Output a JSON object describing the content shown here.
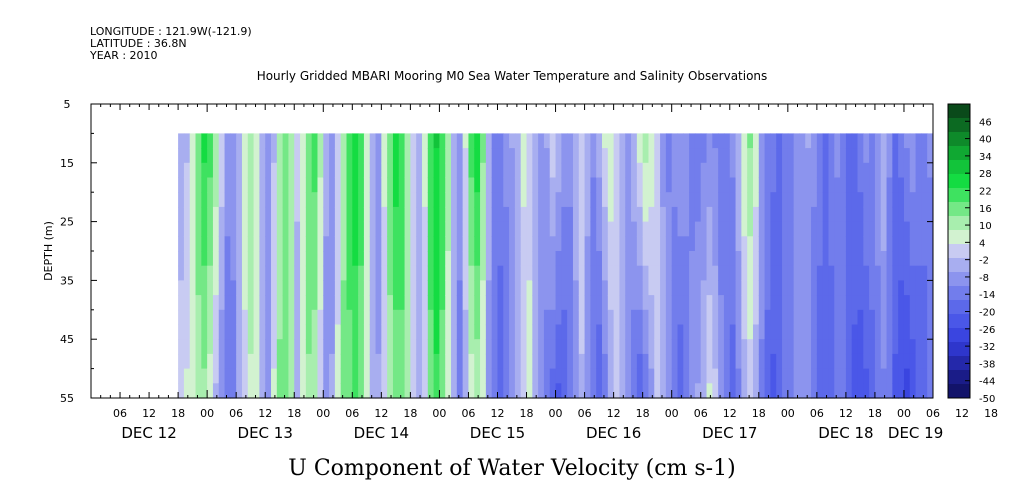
{
  "header": {
    "longitude": "LONGITUDE : 121.9W(-121.9)",
    "latitude": "LATITUDE : 36.8N",
    "year": "YEAR : 2010"
  },
  "chart_data": {
    "type": "heatmap",
    "title": "Hourly Gridded MBARI Mooring M0 Sea Water Temperature and Salinity Observations",
    "variable_title": "U Component of Water Velocity (cm s-1)",
    "ylabel": "DEPTH (m)",
    "xlabel": "",
    "y_axis": {
      "reversed": true,
      "ylim": [
        5,
        55
      ],
      "ticks": [
        5,
        15,
        25,
        35,
        45,
        55
      ]
    },
    "x_axis": {
      "range_days": [
        0,
        7.25
      ],
      "hour_ticks": [
        "06",
        "12",
        "18",
        "00",
        "06",
        "12",
        "18",
        "00",
        "06",
        "12",
        "18",
        "00",
        "06",
        "12",
        "18",
        "00",
        "06",
        "12",
        "18",
        "00",
        "06",
        "12",
        "18",
        "00",
        "06",
        "12",
        "18",
        "00",
        "06",
        "12",
        "18",
        "00"
      ],
      "day_labels": [
        "DEC 12",
        "DEC 13",
        "DEC 14",
        "DEC 15",
        "DEC 16",
        "DEC 17",
        "DEC 18",
        "DEC 19"
      ]
    },
    "data_extent": {
      "depth": [
        10,
        55
      ],
      "time_start_hour": 18
    },
    "colorbar": {
      "levels": [
        "46",
        "40",
        "34",
        "28",
        "22",
        "16",
        "10",
        "4",
        "-2",
        "-8",
        "-14",
        "-20",
        "-26",
        "-32",
        "-38",
        "-44",
        "-50"
      ],
      "range": [
        -50,
        52
      ],
      "colors": [
        "#0a4a1a",
        "#0c6a22",
        "#0e8a2a",
        "#10a832",
        "#12c43a",
        "#14dc42",
        "#3ee260",
        "#74e886",
        "#a8eeae",
        "#d2f2d0",
        "#c8cbf2",
        "#a8aef0",
        "#8c94ee",
        "#727dec",
        "#5c69ea",
        "#4a57e8",
        "#3a45e0",
        "#2e36cc",
        "#2428aa",
        "#1a1c88",
        "#12136a"
      ]
    },
    "columns": [
      {
        "t": 0.0,
        "top": -6,
        "bot": 2
      },
      {
        "t": 0.05,
        "top": -2,
        "bot": 4
      },
      {
        "t": 0.1,
        "top": 8,
        "bot": 6
      },
      {
        "t": 0.15,
        "top": 18,
        "bot": 10
      },
      {
        "t": 0.2,
        "top": 24,
        "bot": 12
      },
      {
        "t": 0.25,
        "top": 20,
        "bot": 6
      },
      {
        "t": 0.3,
        "top": 12,
        "bot": -2
      },
      {
        "t": 0.35,
        "top": 2,
        "bot": -10
      },
      {
        "t": 0.4,
        "top": -8,
        "bot": -16
      },
      {
        "t": 0.45,
        "top": -10,
        "bot": -12
      },
      {
        "t": 0.5,
        "top": -4,
        "bot": -6
      },
      {
        "t": 0.55,
        "top": 6,
        "bot": 2
      },
      {
        "t": 0.6,
        "top": 10,
        "bot": 8
      },
      {
        "t": 0.65,
        "top": 4,
        "bot": 6
      },
      {
        "t": 0.7,
        "top": -4,
        "bot": -4
      },
      {
        "t": 0.75,
        "top": -10,
        "bot": -8
      },
      {
        "t": 0.8,
        "top": -2,
        "bot": 4
      },
      {
        "t": 0.85,
        "top": 10,
        "bot": 14
      },
      {
        "t": 0.9,
        "top": 18,
        "bot": 18
      },
      {
        "t": 0.95,
        "top": 12,
        "bot": 10
      },
      {
        "t": 1.0,
        "top": 0,
        "bot": -4
      },
      {
        "t": 1.05,
        "top": 8,
        "bot": 6
      },
      {
        "t": 1.1,
        "top": 18,
        "bot": 12
      },
      {
        "t": 1.15,
        "top": 20,
        "bot": 10
      },
      {
        "t": 1.2,
        "top": 10,
        "bot": 0
      },
      {
        "t": 1.25,
        "top": -4,
        "bot": -10
      },
      {
        "t": 1.3,
        "top": -8,
        "bot": -6
      },
      {
        "t": 1.35,
        "top": 2,
        "bot": 4
      },
      {
        "t": 1.4,
        "top": 12,
        "bot": 14
      },
      {
        "t": 1.45,
        "top": 22,
        "bot": 16
      },
      {
        "t": 1.5,
        "top": 26,
        "bot": 20
      },
      {
        "t": 1.55,
        "top": 20,
        "bot": 16
      },
      {
        "t": 1.6,
        "top": 8,
        "bot": 8
      },
      {
        "t": 1.65,
        "top": -4,
        "bot": -2
      },
      {
        "t": 1.7,
        "top": -8,
        "bot": -6
      },
      {
        "t": 1.75,
        "top": 4,
        "bot": 2
      },
      {
        "t": 1.8,
        "top": 18,
        "bot": 10
      },
      {
        "t": 1.85,
        "top": 26,
        "bot": 14
      },
      {
        "t": 1.9,
        "top": 22,
        "bot": 16
      },
      {
        "t": 1.95,
        "top": 12,
        "bot": 10
      },
      {
        "t": 2.0,
        "top": 0,
        "bot": 2
      },
      {
        "t": 2.05,
        "top": -6,
        "bot": -4
      },
      {
        "t": 2.1,
        "top": 4,
        "bot": 2
      },
      {
        "t": 2.15,
        "top": 22,
        "bot": 16
      },
      {
        "t": 2.2,
        "top": 28,
        "bot": 22
      },
      {
        "t": 2.25,
        "top": 22,
        "bot": 16
      },
      {
        "t": 2.3,
        "top": 10,
        "bot": 6
      },
      {
        "t": 2.35,
        "top": -4,
        "bot": -6
      },
      {
        "t": 2.4,
        "top": -10,
        "bot": -12
      },
      {
        "t": 2.45,
        "top": 4,
        "bot": -4
      },
      {
        "t": 2.5,
        "top": 20,
        "bot": 6
      },
      {
        "t": 2.55,
        "top": 26,
        "bot": 10
      },
      {
        "t": 2.6,
        "top": 14,
        "bot": 4
      },
      {
        "t": 2.65,
        "top": -4,
        "bot": -8
      },
      {
        "t": 2.7,
        "top": -12,
        "bot": -14
      },
      {
        "t": 2.75,
        "top": -14,
        "bot": -18
      },
      {
        "t": 2.8,
        "top": -10,
        "bot": -14
      },
      {
        "t": 2.85,
        "top": -6,
        "bot": -10
      },
      {
        "t": 2.9,
        "top": -2,
        "bot": -4
      },
      {
        "t": 2.95,
        "top": 4,
        "bot": 2
      },
      {
        "t": 3.0,
        "top": 0,
        "bot": 6
      },
      {
        "t": 3.05,
        "top": -6,
        "bot": -2
      },
      {
        "t": 3.1,
        "top": -10,
        "bot": -10
      },
      {
        "t": 3.15,
        "top": -6,
        "bot": -14
      },
      {
        "t": 3.2,
        "top": 2,
        "bot": -18
      },
      {
        "t": 3.25,
        "top": -2,
        "bot": -22
      },
      {
        "t": 3.3,
        "top": -8,
        "bot": -20
      },
      {
        "t": 3.35,
        "top": -10,
        "bot": -14
      },
      {
        "t": 3.4,
        "top": -4,
        "bot": -8
      },
      {
        "t": 3.45,
        "top": 2,
        "bot": -2
      },
      {
        "t": 3.5,
        "top": -4,
        "bot": -10
      },
      {
        "t": 3.55,
        "top": -10,
        "bot": -16
      },
      {
        "t": 3.6,
        "top": -4,
        "bot": -20
      },
      {
        "t": 3.65,
        "top": 4,
        "bot": -14
      },
      {
        "t": 3.7,
        "top": 8,
        "bot": -6
      },
      {
        "t": 3.75,
        "top": 2,
        "bot": 0
      },
      {
        "t": 3.8,
        "top": -6,
        "bot": -4
      },
      {
        "t": 3.85,
        "top": -10,
        "bot": -10
      },
      {
        "t": 3.9,
        "top": -2,
        "bot": -16
      },
      {
        "t": 3.95,
        "top": 6,
        "bot": -20
      },
      {
        "t": 4.0,
        "top": 12,
        "bot": -16
      },
      {
        "t": 4.05,
        "top": 8,
        "bot": -8
      },
      {
        "t": 4.1,
        "top": 0,
        "bot": 2
      },
      {
        "t": 4.15,
        "top": -8,
        "bot": -2
      },
      {
        "t": 4.2,
        "top": -12,
        "bot": -8
      },
      {
        "t": 4.25,
        "top": -10,
        "bot": -14
      },
      {
        "t": 4.3,
        "top": -6,
        "bot": -20
      },
      {
        "t": 4.35,
        "top": -8,
        "bot": -16
      },
      {
        "t": 4.4,
        "top": -12,
        "bot": -10
      },
      {
        "t": 4.45,
        "top": -14,
        "bot": -6
      },
      {
        "t": 4.5,
        "top": -12,
        "bot": -2
      },
      {
        "t": 4.55,
        "top": -10,
        "bot": 4
      },
      {
        "t": 4.6,
        "top": -12,
        "bot": 0
      },
      {
        "t": 4.65,
        "top": -16,
        "bot": -8
      },
      {
        "t": 4.7,
        "top": -14,
        "bot": -14
      },
      {
        "t": 4.75,
        "top": -10,
        "bot": -18
      },
      {
        "t": 4.8,
        "top": -2,
        "bot": -12
      },
      {
        "t": 4.85,
        "top": 8,
        "bot": -4
      },
      {
        "t": 4.9,
        "top": 14,
        "bot": 0
      },
      {
        "t": 4.95,
        "top": 6,
        "bot": -4
      },
      {
        "t": 5.0,
        "top": -8,
        "bot": -12
      },
      {
        "t": 5.05,
        "top": -12,
        "bot": -18
      },
      {
        "t": 5.1,
        "top": -14,
        "bot": -22
      },
      {
        "t": 5.15,
        "top": -16,
        "bot": -20
      },
      {
        "t": 5.2,
        "top": -14,
        "bot": -16
      },
      {
        "t": 5.25,
        "top": -12,
        "bot": -12
      },
      {
        "t": 5.3,
        "top": -10,
        "bot": -10
      },
      {
        "t": 5.35,
        "top": -8,
        "bot": -8
      },
      {
        "t": 5.4,
        "top": -6,
        "bot": -10
      },
      {
        "t": 5.45,
        "top": -10,
        "bot": -14
      },
      {
        "t": 5.5,
        "top": -14,
        "bot": -18
      },
      {
        "t": 5.55,
        "top": -16,
        "bot": -20
      },
      {
        "t": 5.6,
        "top": -14,
        "bot": -18
      },
      {
        "t": 5.65,
        "top": -10,
        "bot": -16
      },
      {
        "t": 5.7,
        "top": -12,
        "bot": -14
      },
      {
        "t": 5.75,
        "top": -16,
        "bot": -18
      },
      {
        "t": 5.8,
        "top": -18,
        "bot": -22
      },
      {
        "t": 5.85,
        "top": -14,
        "bot": -24
      },
      {
        "t": 5.9,
        "top": -10,
        "bot": -22
      },
      {
        "t": 5.95,
        "top": -12,
        "bot": -18
      },
      {
        "t": 6.0,
        "top": -8,
        "bot": -14
      },
      {
        "t": 6.05,
        "top": -2,
        "bot": -12
      },
      {
        "t": 6.1,
        "top": -10,
        "bot": -16
      },
      {
        "t": 6.15,
        "top": -16,
        "bot": -22
      },
      {
        "t": 6.2,
        "top": -14,
        "bot": -26
      },
      {
        "t": 6.25,
        "top": -10,
        "bot": -28
      },
      {
        "t": 6.3,
        "top": -8,
        "bot": -24
      },
      {
        "t": 6.35,
        "top": -12,
        "bot": -20
      },
      {
        "t": 6.4,
        "top": -14,
        "bot": -18
      },
      {
        "t": 6.45,
        "top": -10,
        "bot": -16
      },
      {
        "t": 6.5,
        "top": -4,
        "bot": -12
      },
      {
        "t": 6.55,
        "top": -10,
        "bot": -14
      },
      {
        "t": 6.6,
        "top": -14,
        "bot": -18
      },
      {
        "t": 6.65,
        "top": -12,
        "bot": -22
      },
      {
        "t": 6.7,
        "top": -16,
        "bot": -26
      },
      {
        "t": 6.75,
        "top": -18,
        "bot": -28
      },
      {
        "t": 6.8,
        "top": -14,
        "bot": -24
      },
      {
        "t": 6.85,
        "top": -10,
        "bot": -20
      },
      {
        "t": 6.9,
        "top": -8,
        "bot": -16
      },
      {
        "t": 6.95,
        "top": -4,
        "bot": -12
      },
      {
        "t": 7.0,
        "top": -10,
        "bot": -14
      },
      {
        "t": 7.05,
        "top": -14,
        "bot": -18
      },
      {
        "t": 7.1,
        "top": -12,
        "bot": -16
      },
      {
        "t": 7.125,
        "top": -10,
        "bot": -14
      }
    ]
  }
}
